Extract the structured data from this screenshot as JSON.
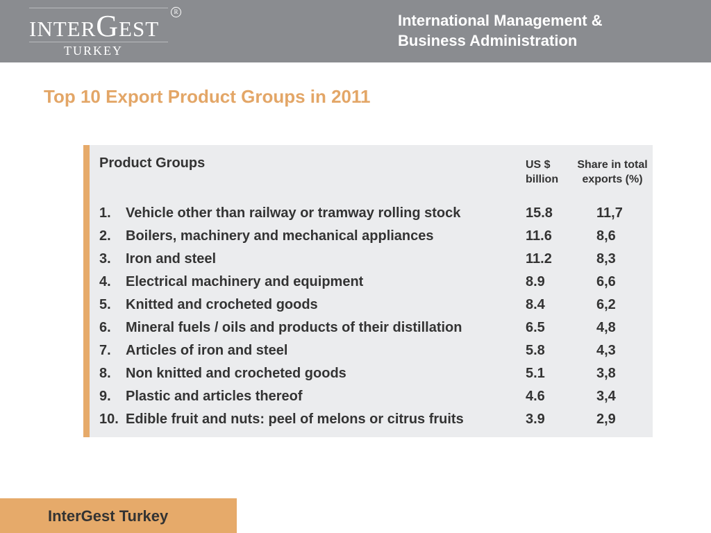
{
  "header": {
    "logo": {
      "main_pre": "INTER",
      "main_big": "G",
      "main_post": "EST",
      "sub": "TURKEY",
      "reg": "R"
    },
    "title_line1": "International Management &",
    "title_line2": "Business Administration"
  },
  "slide": {
    "title": "Top 10 Export Product Groups in 2011"
  },
  "table": {
    "col_group": "Product Groups",
    "col_usd": "US $ billion",
    "col_share": "Share in total exports (%)",
    "rows": [
      {
        "num": "1.",
        "name": "Vehicle other than railway or tramway rolling stock",
        "usd": "15.8",
        "share": "11,7"
      },
      {
        "num": "2.",
        "name": "Boilers, machinery and mechanical appliances",
        "usd": "11.6",
        "share": "8,6"
      },
      {
        "num": "3.",
        "name": "Iron and steel",
        "usd": "11.2",
        "share": "8,3"
      },
      {
        "num": "4.",
        "name": "Electrical machinery and equipment",
        "usd": "8.9",
        "share": "6,6"
      },
      {
        "num": "5.",
        "name": "Knitted and crocheted goods",
        "usd": "8.4",
        "share": "6,2"
      },
      {
        "num": "6.",
        "name": "Mineral fuels / oils and products of their distillation",
        "usd": "6.5",
        "share": "4,8"
      },
      {
        "num": "7.",
        "name": "Articles of iron and steel",
        "usd": "5.8",
        "share": "4,3"
      },
      {
        "num": "8.",
        "name": "Non knitted and crocheted goods",
        "usd": "5.1",
        "share": "3,8"
      },
      {
        "num": "9.",
        "name": "Plastic and articles thereof",
        "usd": "4.6",
        "share": "3,4"
      },
      {
        "num": "10.",
        "name": "Edible fruit and nuts: peel of melons or citrus fruits",
        "usd": "3.9",
        "share": "2,9"
      }
    ]
  },
  "footer": {
    "label": "InterGest Turkey"
  }
}
